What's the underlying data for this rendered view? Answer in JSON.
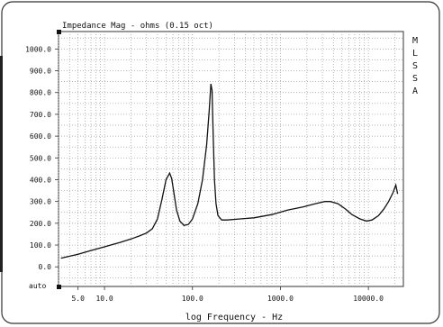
{
  "chart_data": {
    "type": "line",
    "title": "Impedance Mag - ohms (0.15 oct)",
    "xlabel": "log Frequency - Hz",
    "ylabel": "",
    "xscale": "log",
    "xlim": [
      3,
      25000
    ],
    "ylim": [
      -90,
      1080
    ],
    "grid": true,
    "side_label": [
      "M",
      "L",
      "S",
      "S",
      "A"
    ],
    "corner_label": "auto",
    "y_ticks": [
      {
        "value": 1000,
        "label": "1000.0"
      },
      {
        "value": 900,
        "label": "900.0"
      },
      {
        "value": 800,
        "label": "800.0"
      },
      {
        "value": 700,
        "label": "700.0"
      },
      {
        "value": 600,
        "label": "600.0"
      },
      {
        "value": 500,
        "label": "500.0"
      },
      {
        "value": 400,
        "label": "400.0"
      },
      {
        "value": 300,
        "label": "300.0"
      },
      {
        "value": 200,
        "label": "200.0"
      },
      {
        "value": 100,
        "label": "100.0"
      },
      {
        "value": 0,
        "label": "0.0"
      }
    ],
    "x_ticks": [
      {
        "value": 5,
        "label": "5.0"
      },
      {
        "value": 10,
        "label": "10.0"
      },
      {
        "value": 100,
        "label": "100.0"
      },
      {
        "value": 1000,
        "label": "1000.0"
      },
      {
        "value": 10000,
        "label": "10000.0"
      }
    ],
    "series": [
      {
        "name": "",
        "color": "#111111",
        "x": [
          3.2,
          5,
          7,
          10,
          15,
          20,
          25,
          30,
          35,
          40,
          45,
          50,
          55,
          58,
          62,
          66,
          72,
          80,
          90,
          100,
          115,
          130,
          145,
          155,
          162,
          167,
          172,
          178,
          185,
          195,
          215,
          250,
          350,
          500,
          800,
          1200,
          1800,
          2500,
          3200,
          3700,
          4500,
          5500,
          6500,
          8000,
          9500,
          11000,
          13000,
          15000,
          17000,
          19000,
          20500,
          21500
        ],
        "y": [
          40,
          58,
          75,
          92,
          112,
          128,
          142,
          155,
          175,
          220,
          310,
          400,
          430,
          405,
          330,
          260,
          210,
          190,
          195,
          220,
          290,
          400,
          560,
          720,
          840,
          810,
          600,
          400,
          290,
          235,
          215,
          215,
          220,
          225,
          240,
          260,
          275,
          290,
          300,
          300,
          290,
          265,
          240,
          220,
          210,
          215,
          235,
          265,
          300,
          340,
          375,
          335
        ]
      }
    ]
  }
}
